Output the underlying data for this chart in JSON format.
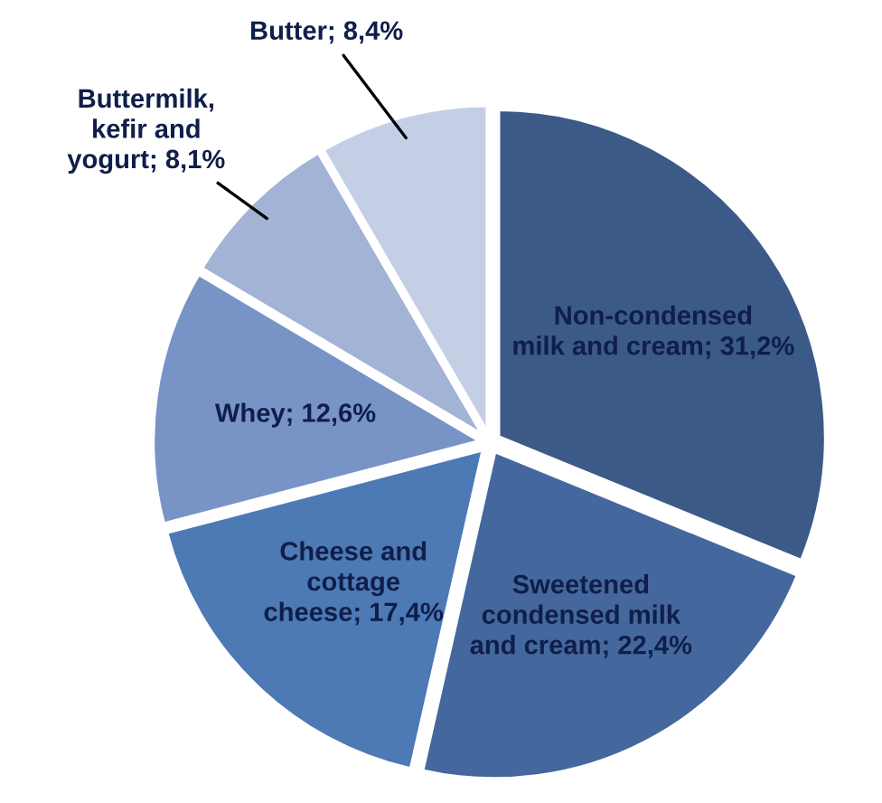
{
  "chart_data": {
    "type": "pie",
    "categories": [
      "Non-condensed\nmilk and cream",
      "Sweetened\ncondensed milk\nand cream",
      "Cheese and\ncottage\ncheese",
      "Whey",
      "Buttermilk,\nkefir and\nyogurt",
      "Butter"
    ],
    "values": [
      31.2,
      22.4,
      17.4,
      12.6,
      8.1,
      8.4
    ],
    "value_labels": [
      "31,2%",
      "22,4%",
      "17,4%",
      "12,6%",
      "8,1%",
      "8,4%"
    ],
    "colors": [
      "#3b5a87",
      "#44679d",
      "#4d79b4",
      "#7893c6",
      "#a2b3d6",
      "#c4cfe5"
    ]
  }
}
